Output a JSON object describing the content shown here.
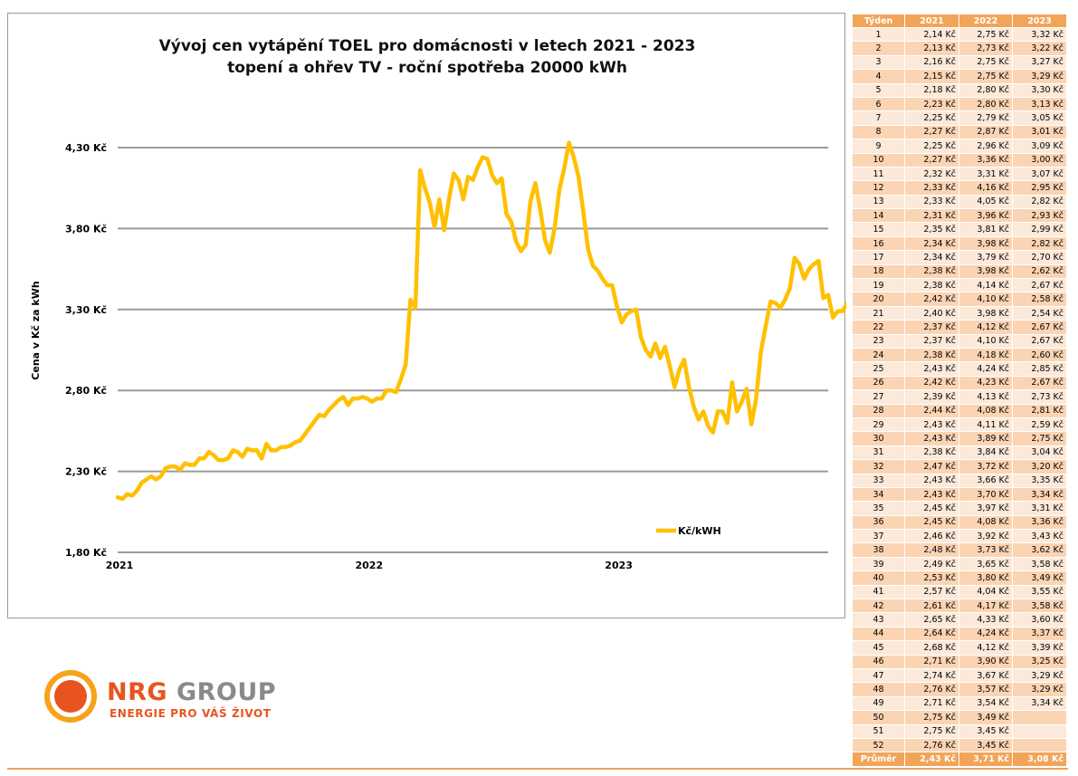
{
  "chart_data": {
    "type": "line",
    "title": "Vývoj cen vytápění TOEL pro domácnosti v letech 2021 - 2023",
    "subtitle": "topení a ohřev TV - roční spotřeba 20000 kWh",
    "xlabel": "",
    "ylabel": "Cena v Kč za kWh",
    "y_ticks": [
      "4,30 Kč",
      "3,80 Kč",
      "3,30 Kč",
      "2,80 Kč",
      "2,30 Kč",
      "1,80 Kč"
    ],
    "x_ticks": [
      "2021",
      "2022",
      "2023"
    ],
    "ylim": [
      1.8,
      4.3
    ],
    "grid": true,
    "legend_position": "bottom-right",
    "series": [
      {
        "name": "Kč/kWH",
        "color": "#ffc000",
        "values": [
          2.14,
          2.13,
          2.16,
          2.15,
          2.18,
          2.23,
          2.25,
          2.27,
          2.25,
          2.27,
          2.32,
          2.33,
          2.33,
          2.31,
          2.35,
          2.34,
          2.34,
          2.38,
          2.38,
          2.42,
          2.4,
          2.37,
          2.37,
          2.38,
          2.43,
          2.42,
          2.39,
          2.44,
          2.43,
          2.43,
          2.38,
          2.47,
          2.43,
          2.43,
          2.45,
          2.45,
          2.46,
          2.48,
          2.49,
          2.53,
          2.57,
          2.61,
          2.65,
          2.64,
          2.68,
          2.71,
          2.74,
          2.76,
          2.71,
          2.75,
          2.75,
          2.76,
          2.75,
          2.73,
          2.75,
          2.75,
          2.8,
          2.8,
          2.79,
          2.87,
          2.96,
          3.36,
          3.31,
          4.16,
          4.05,
          3.96,
          3.81,
          3.98,
          3.79,
          3.98,
          4.14,
          4.1,
          3.98,
          4.12,
          4.1,
          4.18,
          4.24,
          4.23,
          4.13,
          4.08,
          4.11,
          3.89,
          3.84,
          3.72,
          3.66,
          3.7,
          3.97,
          4.08,
          3.92,
          3.73,
          3.65,
          3.8,
          4.04,
          4.17,
          4.33,
          4.24,
          4.12,
          3.9,
          3.67,
          3.57,
          3.54,
          3.49,
          3.45,
          3.45,
          3.32,
          3.22,
          3.27,
          3.29,
          3.3,
          3.13,
          3.05,
          3.01,
          3.09,
          3.0,
          3.07,
          2.95,
          2.82,
          2.93,
          2.99,
          2.82,
          2.7,
          2.62,
          2.67,
          2.58,
          2.54,
          2.67,
          2.67,
          2.6,
          2.85,
          2.67,
          2.73,
          2.81,
          2.59,
          2.75,
          3.04,
          3.2,
          3.35,
          3.34,
          3.31,
          3.36,
          3.43,
          3.62,
          3.58,
          3.49,
          3.55,
          3.58,
          3.6,
          3.37,
          3.39,
          3.25,
          3.29,
          3.29,
          3.34
        ]
      }
    ]
  },
  "table": {
    "headers": [
      "Týden",
      "2021",
      "2022",
      "2023"
    ],
    "rows": [
      [
        "1",
        "2,14 Kč",
        "2,75 Kč",
        "3,32 Kč"
      ],
      [
        "2",
        "2,13 Kč",
        "2,73 Kč",
        "3,22 Kč"
      ],
      [
        "3",
        "2,16 Kč",
        "2,75 Kč",
        "3,27 Kč"
      ],
      [
        "4",
        "2,15 Kč",
        "2,75 Kč",
        "3,29 Kč"
      ],
      [
        "5",
        "2,18 Kč",
        "2,80 Kč",
        "3,30 Kč"
      ],
      [
        "6",
        "2,23 Kč",
        "2,80 Kč",
        "3,13 Kč"
      ],
      [
        "7",
        "2,25 Kč",
        "2,79 Kč",
        "3,05 Kč"
      ],
      [
        "8",
        "2,27 Kč",
        "2,87 Kč",
        "3,01 Kč"
      ],
      [
        "9",
        "2,25 Kč",
        "2,96 Kč",
        "3,09 Kč"
      ],
      [
        "10",
        "2,27 Kč",
        "3,36 Kč",
        "3,00 Kč"
      ],
      [
        "11",
        "2,32 Kč",
        "3,31 Kč",
        "3,07 Kč"
      ],
      [
        "12",
        "2,33 Kč",
        "4,16 Kč",
        "2,95 Kč"
      ],
      [
        "13",
        "2,33 Kč",
        "4,05 Kč",
        "2,82 Kč"
      ],
      [
        "14",
        "2,31 Kč",
        "3,96 Kč",
        "2,93 Kč"
      ],
      [
        "15",
        "2,35 Kč",
        "3,81 Kč",
        "2,99 Kč"
      ],
      [
        "16",
        "2,34 Kč",
        "3,98 Kč",
        "2,82 Kč"
      ],
      [
        "17",
        "2,34 Kč",
        "3,79 Kč",
        "2,70 Kč"
      ],
      [
        "18",
        "2,38 Kč",
        "3,98 Kč",
        "2,62 Kč"
      ],
      [
        "19",
        "2,38 Kč",
        "4,14 Kč",
        "2,67 Kč"
      ],
      [
        "20",
        "2,42 Kč",
        "4,10 Kč",
        "2,58 Kč"
      ],
      [
        "21",
        "2,40 Kč",
        "3,98 Kč",
        "2,54 Kč"
      ],
      [
        "22",
        "2,37 Kč",
        "4,12 Kč",
        "2,67 Kč"
      ],
      [
        "23",
        "2,37 Kč",
        "4,10 Kč",
        "2,67 Kč"
      ],
      [
        "24",
        "2,38 Kč",
        "4,18 Kč",
        "2,60 Kč"
      ],
      [
        "25",
        "2,43 Kč",
        "4,24 Kč",
        "2,85 Kč"
      ],
      [
        "26",
        "2,42 Kč",
        "4,23 Kč",
        "2,67 Kč"
      ],
      [
        "27",
        "2,39 Kč",
        "4,13 Kč",
        "2,73 Kč"
      ],
      [
        "28",
        "2,44 Kč",
        "4,08 Kč",
        "2,81 Kč"
      ],
      [
        "29",
        "2,43 Kč",
        "4,11 Kč",
        "2,59 Kč"
      ],
      [
        "30",
        "2,43 Kč",
        "3,89 Kč",
        "2,75 Kč"
      ],
      [
        "31",
        "2,38 Kč",
        "3,84 Kč",
        "3,04 Kč"
      ],
      [
        "32",
        "2,47 Kč",
        "3,72 Kč",
        "3,20 Kč"
      ],
      [
        "33",
        "2,43 Kč",
        "3,66 Kč",
        "3,35 Kč"
      ],
      [
        "34",
        "2,43 Kč",
        "3,70 Kč",
        "3,34 Kč"
      ],
      [
        "35",
        "2,45 Kč",
        "3,97 Kč",
        "3,31 Kč"
      ],
      [
        "36",
        "2,45 Kč",
        "4,08 Kč",
        "3,36 Kč"
      ],
      [
        "37",
        "2,46 Kč",
        "3,92 Kč",
        "3,43 Kč"
      ],
      [
        "38",
        "2,48 Kč",
        "3,73 Kč",
        "3,62 Kč"
      ],
      [
        "39",
        "2,49 Kč",
        "3,65 Kč",
        "3,58 Kč"
      ],
      [
        "40",
        "2,53 Kč",
        "3,80 Kč",
        "3,49 Kč"
      ],
      [
        "41",
        "2,57 Kč",
        "4,04 Kč",
        "3,55 Kč"
      ],
      [
        "42",
        "2,61 Kč",
        "4,17 Kč",
        "3,58 Kč"
      ],
      [
        "43",
        "2,65 Kč",
        "4,33 Kč",
        "3,60 Kč"
      ],
      [
        "44",
        "2,64 Kč",
        "4,24 Kč",
        "3,37 Kč"
      ],
      [
        "45",
        "2,68 Kč",
        "4,12 Kč",
        "3,39 Kč"
      ],
      [
        "46",
        "2,71 Kč",
        "3,90 Kč",
        "3,25 Kč"
      ],
      [
        "47",
        "2,74 Kč",
        "3,67 Kč",
        "3,29 Kč"
      ],
      [
        "48",
        "2,76 Kč",
        "3,57 Kč",
        "3,29 Kč"
      ],
      [
        "49",
        "2,71 Kč",
        "3,54 Kč",
        "3,34 Kč"
      ],
      [
        "50",
        "2,75 Kč",
        "3,49 Kč",
        ""
      ],
      [
        "51",
        "2,75 Kč",
        "3,45 Kč",
        ""
      ],
      [
        "52",
        "2,76 Kč",
        "3,45 Kč",
        ""
      ]
    ],
    "footer": [
      "Průměr",
      "2,43 Kč",
      "3,71 Kč",
      "3,08 Kč"
    ]
  },
  "logo": {
    "name_accent": "NRG",
    "name_rest": " GROUP",
    "tagline": "ENERGIE PRO VÁŠ ŽIVOT"
  },
  "colors": {
    "line": "#ffc000",
    "grid": "#9a9a9a",
    "table_header": "#f2a458",
    "table_row_light": "#fde9d9",
    "table_row_dark": "#fbd4b4",
    "brand_orange": "#e8541e",
    "brand_gray": "#8a8a8a"
  }
}
